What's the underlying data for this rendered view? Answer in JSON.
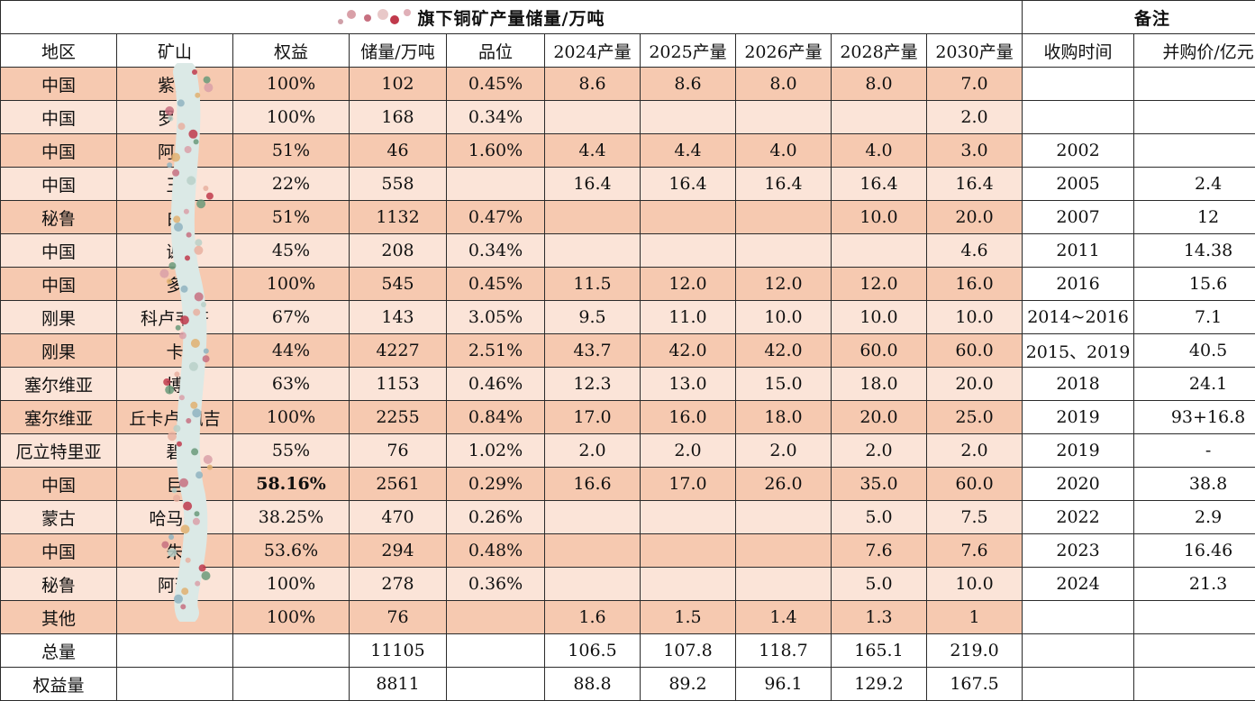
{
  "title": "旗下铜矿产量储量/万吨",
  "notes_header": "备注",
  "columns": [
    "地区",
    "矿山",
    "权益",
    "储量/万吨",
    "品位",
    "2024产量",
    "2025产量",
    "2026产量",
    "2028产量",
    "2030产量",
    "收购时间",
    "并购价/亿元"
  ],
  "rows": [
    {
      "region": "中国",
      "mine": "紫金",
      "equity": "100%",
      "reserve": "102",
      "grade": "0.45%",
      "p2024": "8.6",
      "p2025": "8.6",
      "p2026": "8.0",
      "p2028": "8.0",
      "p2030": "7.0",
      "acq_time": "",
      "price": ""
    },
    {
      "region": "中国",
      "mine": "罗卜",
      "equity": "100%",
      "reserve": "168",
      "grade": "0.34%",
      "p2024": "",
      "p2025": "",
      "p2026": "",
      "p2028": "",
      "p2030": "2.0",
      "acq_time": "",
      "price": ""
    },
    {
      "region": "中国",
      "mine": "阿舍",
      "equity": "51%",
      "reserve": "46",
      "grade": "1.60%",
      "p2024": "4.4",
      "p2025": "4.4",
      "p2026": "4.0",
      "p2028": "4.0",
      "p2030": "3.0",
      "acq_time": "2002",
      "price": ""
    },
    {
      "region": "中国",
      "mine": "玉",
      "equity": "22%",
      "reserve": "558",
      "grade": "",
      "p2024": "16.4",
      "p2025": "16.4",
      "p2026": "16.4",
      "p2028": "16.4",
      "p2030": "16.4",
      "acq_time": "2005",
      "price": "2.4"
    },
    {
      "region": "秘鲁",
      "mine": "白",
      "equity": "51%",
      "reserve": "1132",
      "grade": "0.47%",
      "p2024": "",
      "p2025": "",
      "p2026": "",
      "p2028": "10.0",
      "p2030": "20.0",
      "acq_time": "2007",
      "price": "12"
    },
    {
      "region": "中国",
      "mine": "谢",
      "equity": "45%",
      "reserve": "208",
      "grade": "0.34%",
      "p2024": "",
      "p2025": "",
      "p2026": "",
      "p2028": "",
      "p2030": "4.6",
      "acq_time": "2011",
      "price": "14.38"
    },
    {
      "region": "中国",
      "mine": "多",
      "equity": "100%",
      "reserve": "545",
      "grade": "0.45%",
      "p2024": "11.5",
      "p2025": "12.0",
      "p2026": "12.0",
      "p2028": "12.0",
      "p2030": "16.0",
      "acq_time": "2016",
      "price": "15.6"
    },
    {
      "region": "刚果",
      "mine": "科卢韦齐",
      "equity": "67%",
      "reserve": "143",
      "grade": "3.05%",
      "p2024": "9.5",
      "p2025": "11.0",
      "p2026": "10.0",
      "p2028": "10.0",
      "p2030": "10.0",
      "acq_time": "2014~2016",
      "price": "7.1"
    },
    {
      "region": "刚果",
      "mine": "卡",
      "equity": "44%",
      "reserve": "4227",
      "grade": "2.51%",
      "p2024": "43.7",
      "p2025": "42.0",
      "p2026": "42.0",
      "p2028": "60.0",
      "p2030": "60.0",
      "acq_time": "2015、2019",
      "price": "40.5"
    },
    {
      "region": "塞尔维亚",
      "mine": "博",
      "equity": "63%",
      "reserve": "1153",
      "grade": "0.46%",
      "p2024": "12.3",
      "p2025": "13.0",
      "p2026": "15.0",
      "p2028": "18.0",
      "p2030": "20.0",
      "acq_time": "2018",
      "price": "24.1"
    },
    {
      "region": "塞尔维亚",
      "mine": "丘卡卢-佩吉",
      "equity": "100%",
      "reserve": "2255",
      "grade": "0.84%",
      "p2024": "17.0",
      "p2025": "16.0",
      "p2026": "18.0",
      "p2028": "20.0",
      "p2030": "25.0",
      "acq_time": "2019",
      "price": "93+16.8"
    },
    {
      "region": "厄立特里亚",
      "mine": "碧",
      "equity": "55%",
      "reserve": "76",
      "grade": "1.02%",
      "p2024": "2.0",
      "p2025": "2.0",
      "p2026": "2.0",
      "p2028": "2.0",
      "p2030": "2.0",
      "acq_time": "2019",
      "price": "-"
    },
    {
      "region": "中国",
      "mine": "巨",
      "equity": "58.16%",
      "equity_bold": true,
      "reserve": "2561",
      "grade": "0.29%",
      "p2024": "16.6",
      "p2025": "17.0",
      "p2026": "26.0",
      "p2028": "35.0",
      "p2030": "60.0",
      "acq_time": "2020",
      "price": "38.8"
    },
    {
      "region": "蒙古",
      "mine": "哈马泰",
      "equity": "38.25%",
      "reserve": "470",
      "grade": "0.26%",
      "p2024": "",
      "p2025": "",
      "p2026": "",
      "p2028": "5.0",
      "p2030": "7.5",
      "acq_time": "2022",
      "price": "2.9"
    },
    {
      "region": "中国",
      "mine": "朱",
      "equity": "53.6%",
      "reserve": "294",
      "grade": "0.48%",
      "p2024": "",
      "p2025": "",
      "p2026": "",
      "p2028": "7.6",
      "p2030": "7.6",
      "acq_time": "2023",
      "price": "16.46"
    },
    {
      "region": "秘鲁",
      "mine": "阿瑞",
      "equity": "100%",
      "reserve": "278",
      "grade": "0.36%",
      "p2024": "",
      "p2025": "",
      "p2026": "",
      "p2028": "5.0",
      "p2030": "10.0",
      "acq_time": "2024",
      "price": "21.3"
    },
    {
      "region": "其他",
      "mine": "",
      "equity": "100%",
      "reserve": "76",
      "grade": "",
      "p2024": "1.6",
      "p2025": "1.5",
      "p2026": "1.4",
      "p2028": "1.3",
      "p2030": "1",
      "acq_time": "",
      "price": ""
    }
  ],
  "totals": [
    {
      "label": "总量",
      "reserve": "11105",
      "p2024": "106.5",
      "p2025": "107.8",
      "p2026": "118.7",
      "p2028": "165.1",
      "p2030": "219.0"
    },
    {
      "label": "权益量",
      "reserve": "8811",
      "p2024": "88.8",
      "p2025": "89.2",
      "p2026": "96.1",
      "p2028": "129.2",
      "p2030": "167.5"
    }
  ],
  "colors": {
    "shade_dark": "#f6c9b0",
    "shade_light": "#fbe4d8",
    "border": "#2b2b2b"
  }
}
